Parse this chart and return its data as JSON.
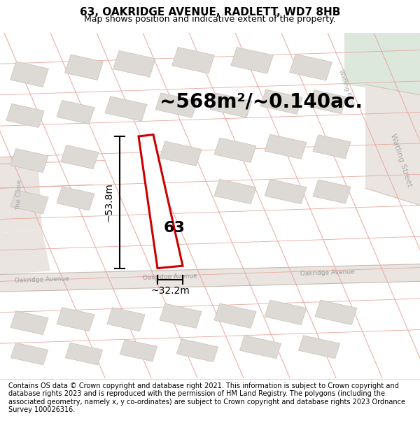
{
  "title": "63, OAKRIDGE AVENUE, RADLETT, WD7 8HB",
  "subtitle": "Map shows position and indicative extent of the property.",
  "area_text": "~568m²/~0.140ac.",
  "dim_height": "~53.8m",
  "dim_width": "~32.2m",
  "label_number": "63",
  "footer": "Contains OS data © Crown copyright and database right 2021. This information is subject to Crown copyright and database rights 2023 and is reproduced with the permission of HM Land Registry. The polygons (including the associated geometry, namely x, y co-ordinates) are subject to Crown copyright and database rights 2023 Ordnance Survey 100026316.",
  "map_bg": "#f2efec",
  "plot_outline_color": "#cc0000",
  "title_fontsize": 11,
  "subtitle_fontsize": 9,
  "area_fontsize": 20,
  "dim_fontsize": 10,
  "label_fontsize": 16,
  "footer_fontsize": 7,
  "line_color": "#e8a8a0",
  "building_fill": "#dddad6",
  "building_edge": "#c8c0b8",
  "road_fill": "#e8e2dc",
  "green_fill": "#dce8dc",
  "road_label_color": "#999999",
  "street_label_color": "#aaaaaa"
}
